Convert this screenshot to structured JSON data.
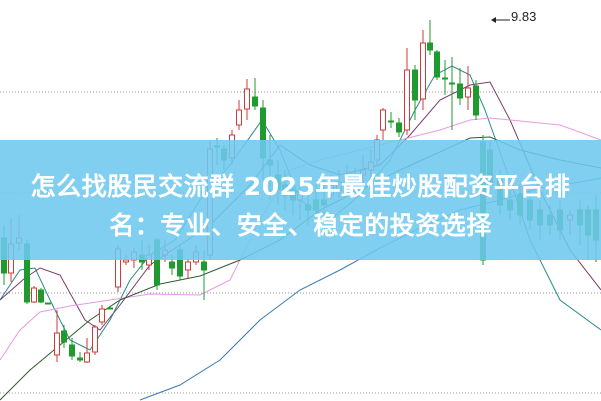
{
  "headline": {
    "line1": "怎么找股民交流群 2025年最佳炒股配资平台排",
    "line2": "名：专业、安全、稳定的投资选择"
  },
  "chart": {
    "type": "candlestick",
    "peak_annotation": "9.83",
    "colors": {
      "up": "#d23a3a",
      "down": "#1f9a2e",
      "banner": "#6ec8ee",
      "grid": "#9a9a9a"
    },
    "moving_average_colors": [
      "#2a8a8a",
      "#7a3a6a",
      "#e39be3",
      "#2e5e2e",
      "#3a7ab0"
    ]
  }
}
